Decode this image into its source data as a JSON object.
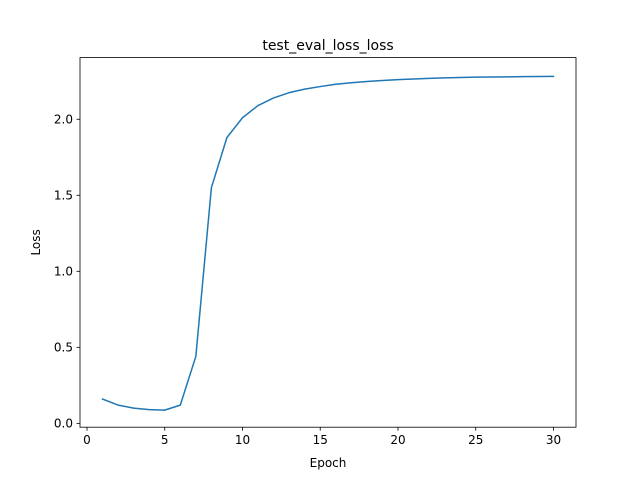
{
  "chart_data": {
    "type": "line",
    "title": "test_eval_loss_loss",
    "xlabel": "Epoch",
    "ylabel": "Loss",
    "xlim": [
      -0.45,
      31.45
    ],
    "ylim": [
      -0.0253,
      2.4055
    ],
    "xticks": [
      0,
      5,
      10,
      15,
      20,
      25,
      30
    ],
    "xtick_labels": [
      "0",
      "5",
      "10",
      "15",
      "20",
      "25",
      "30"
    ],
    "yticks": [
      0.0,
      0.5,
      1.0,
      1.5,
      2.0
    ],
    "ytick_labels": [
      "0.0",
      "0.5",
      "1.0",
      "1.5",
      "2.0"
    ],
    "grid": false,
    "legend": "none",
    "series": [
      {
        "color": "#1f77b4",
        "x": [
          1,
          2,
          3,
          4,
          5,
          6,
          7,
          8,
          9,
          10,
          11,
          12,
          13,
          14,
          15,
          16,
          17,
          18,
          19,
          20,
          21,
          22,
          23,
          24,
          25,
          26,
          27,
          28,
          29,
          30
        ],
        "y": [
          0.16,
          0.12,
          0.1,
          0.09,
          0.087,
          0.12,
          0.44,
          1.55,
          1.88,
          2.01,
          2.09,
          2.14,
          2.175,
          2.198,
          2.215,
          2.23,
          2.24,
          2.248,
          2.255,
          2.261,
          2.265,
          2.269,
          2.272,
          2.275,
          2.277,
          2.278,
          2.279,
          2.28,
          2.281,
          2.282
        ]
      }
    ]
  }
}
